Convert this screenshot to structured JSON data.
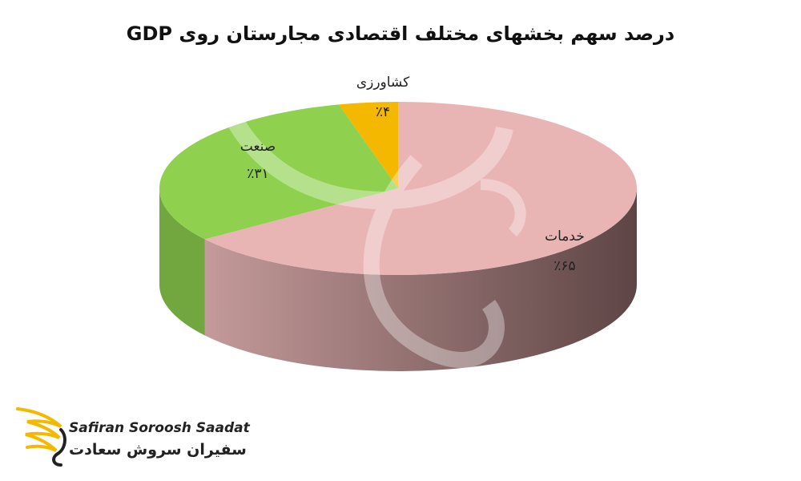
{
  "chart_data": {
    "type": "pie",
    "title": "درصد سهم بخشهای مختلف اقتصادی مجارستان روی GDP",
    "slices": [
      {
        "label": "کشاورزی",
        "value": 4,
        "value_label": "٪۴",
        "color": "#f5b800"
      },
      {
        "label": "صنعت",
        "value": 31,
        "value_label": "٪۳۱",
        "color": "#8fd14f"
      },
      {
        "label": "خدمات",
        "value": 65,
        "value_label": "٪۶۵",
        "color": "#e9b4b4"
      }
    ],
    "style": "3d"
  },
  "logo": {
    "name_en": "Safiran Soroosh Saadat",
    "name_fa": "سفیران سروش سعادت",
    "accent_color": "#f5b800"
  }
}
